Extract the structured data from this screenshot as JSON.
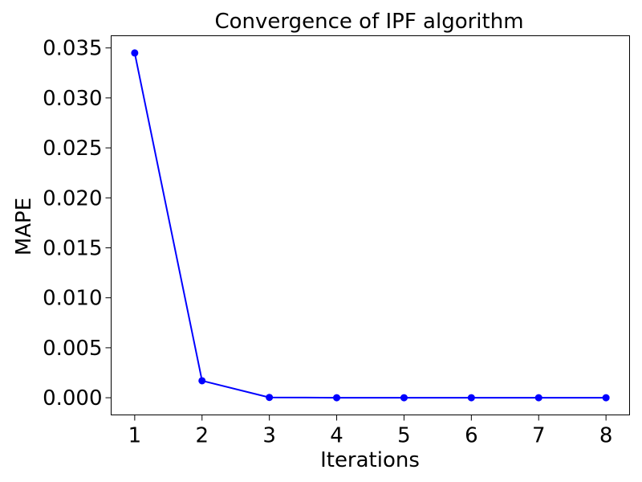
{
  "chart_data": {
    "type": "line",
    "title": "Convergence of IPF algorithm",
    "xlabel": "Iterations",
    "ylabel": "MAPE",
    "x": [
      1,
      2,
      3,
      4,
      5,
      6,
      7,
      8
    ],
    "series": [
      {
        "values": [
          0.0345,
          0.0017,
          3e-05,
          0.0,
          0.0,
          0.0,
          0.0,
          0.0
        ],
        "color": "#0000ff",
        "marker": "circle"
      }
    ],
    "xlim": [
      0.65,
      8.35
    ],
    "ylim": [
      -0.00172,
      0.03622
    ],
    "xticks": [
      "1",
      "2",
      "3",
      "4",
      "5",
      "6",
      "7",
      "8"
    ],
    "yticks": [
      "0.000",
      "0.005",
      "0.010",
      "0.015",
      "0.020",
      "0.025",
      "0.030",
      "0.035"
    ],
    "grid": false,
    "legend": "none"
  }
}
